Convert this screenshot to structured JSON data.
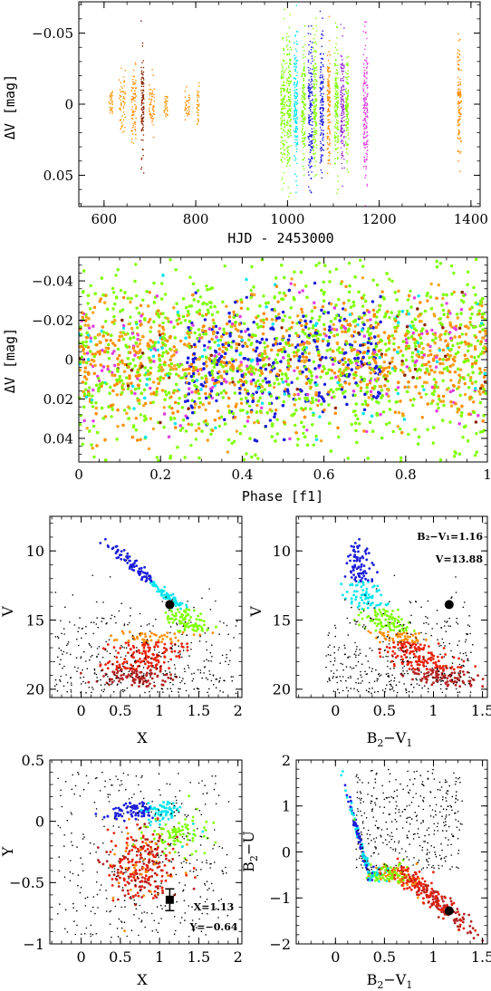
{
  "chart_data": [
    {
      "id": "p1",
      "type": "scatter",
      "xlabel": "HJD - 2453000",
      "ylabel": "ΔV [mag]",
      "xlim": [
        545,
        1420
      ],
      "ylim": [
        0.072,
        -0.072
      ],
      "xticks": [
        600,
        800,
        1000,
        1200,
        1400
      ],
      "yticks": [
        -0.05,
        0,
        0.05
      ],
      "xticklabels": [
        "600",
        "800",
        "1000",
        "1200",
        "1400"
      ],
      "yticklabels": [
        "−0.05",
        "0",
        "0.05"
      ],
      "observing_runs": [
        {
          "hjd_center": 615,
          "width": 8,
          "amplitude": 0.012,
          "color": "#f39c12"
        },
        {
          "hjd_center": 640,
          "width": 14,
          "amplitude": 0.025,
          "color": "#f39c12"
        },
        {
          "hjd_center": 665,
          "width": 10,
          "amplitude": 0.03,
          "color": "#ff8c00"
        },
        {
          "hjd_center": 684,
          "width": 6,
          "amplitude": 0.04,
          "color": "#8b2500"
        },
        {
          "hjd_center": 704,
          "width": 12,
          "amplitude": 0.02,
          "color": "#ff8c00"
        },
        {
          "hjd_center": 735,
          "width": 8,
          "amplitude": 0.012,
          "color": "#f39c12"
        },
        {
          "hjd_center": 782,
          "width": 12,
          "amplitude": 0.012,
          "color": "#ff8c00"
        },
        {
          "hjd_center": 805,
          "width": 5,
          "amplitude": 0.014,
          "color": "#f39c12"
        },
        {
          "hjd_center": 990,
          "width": 10,
          "amplitude": 0.06,
          "color": "#7fff00"
        },
        {
          "hjd_center": 1003,
          "width": 10,
          "amplitude": 0.062,
          "color": "#7fff00"
        },
        {
          "hjd_center": 1018,
          "width": 8,
          "amplitude": 0.058,
          "color": "#00e5ee"
        },
        {
          "hjd_center": 1035,
          "width": 8,
          "amplitude": 0.05,
          "color": "#7fff00"
        },
        {
          "hjd_center": 1050,
          "width": 10,
          "amplitude": 0.065,
          "color": "#1c1cdc"
        },
        {
          "hjd_center": 1060,
          "width": 8,
          "amplitude": 0.055,
          "color": "#7fff00"
        },
        {
          "hjd_center": 1075,
          "width": 8,
          "amplitude": 0.055,
          "color": "#1c1cdc"
        },
        {
          "hjd_center": 1090,
          "width": 6,
          "amplitude": 0.05,
          "color": "#ff8c00"
        },
        {
          "hjd_center": 1107,
          "width": 8,
          "amplitude": 0.055,
          "color": "#7fff00"
        },
        {
          "hjd_center": 1120,
          "width": 8,
          "amplitude": 0.055,
          "color": "#9932cc"
        },
        {
          "hjd_center": 1130,
          "width": 6,
          "amplitude": 0.045,
          "color": "#7fff00"
        },
        {
          "hjd_center": 1170,
          "width": 10,
          "amplitude": 0.065,
          "color": "#e040e0"
        },
        {
          "hjd_center": 1375,
          "width": 8,
          "amplitude": 0.045,
          "color": "#ff8c00"
        }
      ]
    },
    {
      "id": "p2",
      "type": "scatter",
      "xlabel": "Phase [f1]",
      "ylabel": "ΔV [mag]",
      "xlim": [
        0,
        1
      ],
      "ylim": [
        0.052,
        -0.052
      ],
      "xticks": [
        0,
        0.2,
        0.4,
        0.6,
        0.8,
        1
      ],
      "yticks": [
        -0.04,
        -0.02,
        0,
        0.02,
        0.04
      ],
      "xticklabels": [
        "0",
        "0.2",
        "0.4",
        "0.6",
        "0.8",
        "1"
      ],
      "yticklabels": [
        "−0.04",
        "−0.02",
        "0",
        "0.02",
        "0.04"
      ],
      "series_colors": [
        "#7fff00",
        "#ff8c00",
        "#f5a623",
        "#1c1cdc",
        "#e040e0",
        "#00e5ee",
        "#8b2500"
      ]
    },
    {
      "id": "p3",
      "type": "scatter",
      "xlabel": "X",
      "ylabel": "V",
      "xlim": [
        -0.4,
        2.05
      ],
      "ylim": [
        20.6,
        7.5
      ],
      "xticks": [
        0,
        0.5,
        1,
        1.5,
        2
      ],
      "yticks": [
        10,
        15,
        20
      ],
      "xticklabels": [
        "0",
        "0.5",
        "1",
        "1.5",
        "2"
      ],
      "yticklabels": [
        "10",
        "15",
        "20"
      ],
      "target": {
        "x": 1.13,
        "y": 13.88
      }
    },
    {
      "id": "p4",
      "type": "scatter",
      "xlabel": "B2−V1",
      "ylabel": "V",
      "xlim": [
        -0.4,
        1.55
      ],
      "ylim": [
        20.6,
        7.5
      ],
      "xticks": [
        0,
        0.5,
        1,
        1.5
      ],
      "yticks": [
        10,
        15,
        20
      ],
      "xticklabels": [
        "0",
        "0.5",
        "1",
        "1.5"
      ],
      "yticklabels": [
        "10",
        "15",
        "20"
      ],
      "target": {
        "x": 1.16,
        "y": 13.88
      }
    },
    {
      "id": "p5",
      "type": "scatter",
      "xlabel": "X",
      "ylabel": "Y",
      "xlim": [
        -0.4,
        2.05
      ],
      "ylim": [
        -1.0,
        0.5
      ],
      "xticks": [
        0,
        0.5,
        1,
        1.5,
        2
      ],
      "yticks": [
        -1,
        -0.5,
        0,
        0.5
      ],
      "xticklabels": [
        "0",
        "0.5",
        "1",
        "1.5",
        "2"
      ],
      "yticklabels": [
        "−1",
        "−0.5",
        "0",
        "0.5"
      ],
      "target": {
        "x": 1.13,
        "y": -0.64
      }
    },
    {
      "id": "p6",
      "type": "scatter",
      "xlabel": "B2−V1",
      "ylabel": "B2−U",
      "xlim": [
        -0.4,
        1.55
      ],
      "ylim": [
        -2.0,
        2.0
      ],
      "xticks": [
        0,
        0.5,
        1,
        1.5
      ],
      "yticks": [
        -2,
        -1,
        0,
        1,
        2
      ],
      "xticklabels": [
        "0",
        "0.5",
        "1",
        "1.5"
      ],
      "yticklabels": [
        "−2",
        "−1",
        "0",
        "1",
        "2"
      ],
      "target": {
        "x": 1.16,
        "y": -1.28
      }
    }
  ],
  "annotations": {
    "p4_line1": "B₂−V₁=1.16",
    "p4_line2": "V=13.88",
    "p5_line1": "X=1.13",
    "p5_line2": "Y=−0.64"
  },
  "colors": {
    "sequence": [
      "#1c1cdc",
      "#00e5ee",
      "#7fff00",
      "#ff8c00",
      "#e8200a",
      "#b22222"
    ],
    "field": "#000000"
  }
}
